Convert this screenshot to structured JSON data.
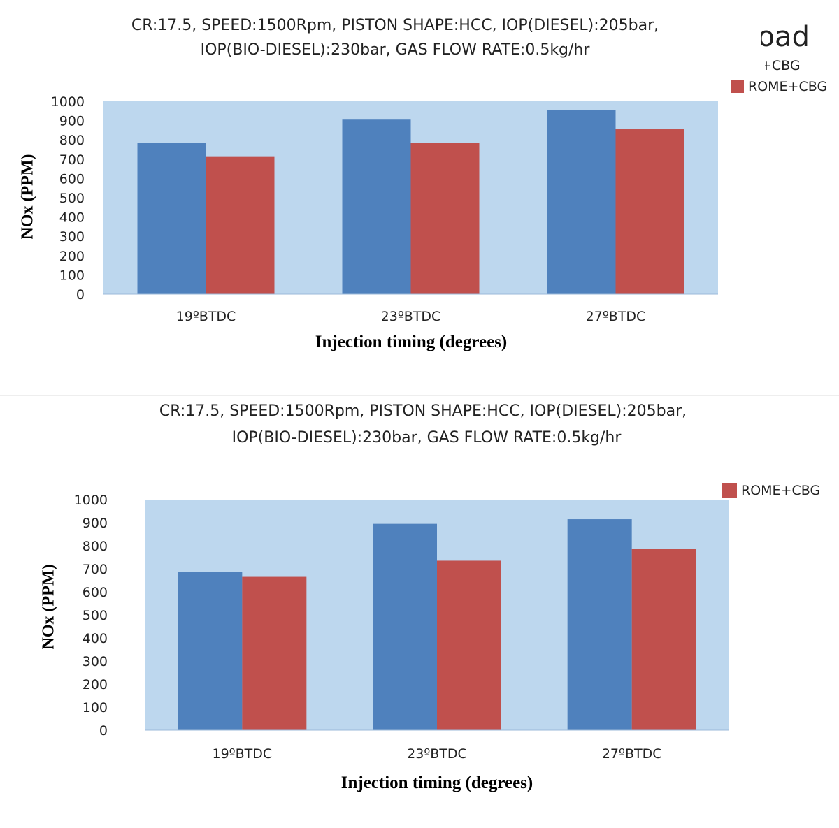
{
  "colors": {
    "plot_bg": "#bdd7ee",
    "series1": "#4f81bd",
    "series2": "#c0504d"
  },
  "charts": [
    {
      "title_line1": "CR:17.5, SPEED:1500Rpm, PISTON SHAPE:HCC,  IOP(DIESEL):205bar,",
      "title_line2": "IOP(BIO-DIESEL):230bar, GAS FLOW RATE:0.5kg/hr",
      "legend_partial_title": "Load",
      "legend_partial_entry": "+CBG",
      "legend_entry": "ROME+CBG"
    },
    {
      "title_line1": "CR:17.5, SPEED:1500Rpm, PISTON SHAPE:HCC,  IOP(DIESEL):205bar,",
      "title_line2": "IOP(BIO-DIESEL):230bar, GAS FLOW RATE:0.5kg/hr",
      "legend_entry": "ROME+CBG"
    }
  ],
  "chart_data": [
    {
      "type": "bar",
      "title": "CR:17.5, SPEED:1500Rpm, PISTON SHAPE:HCC,  IOP(DIESEL):205bar, IOP(BIO-DIESEL):230bar, GAS FLOW RATE:0.5kg/hr",
      "categories": [
        "19ºBTDC",
        "23ºBTDC",
        "27ºBTDC"
      ],
      "series": [
        {
          "values": [
            785,
            905,
            955
          ]
        },
        {
          "name": "ROME+CBG",
          "values": [
            715,
            785,
            855
          ]
        }
      ],
      "xlabel": "Injection timing (degrees)",
      "ylabel": "NOx (PPM)",
      "ylim": [
        0,
        1000
      ],
      "yticks": [
        0,
        100,
        200,
        300,
        400,
        500,
        600,
        700,
        800,
        900,
        1000
      ],
      "grid": false,
      "legend": "top-right"
    },
    {
      "type": "bar",
      "title": "CR:17.5, SPEED:1500Rpm, PISTON SHAPE:HCC,  IOP(DIESEL):205bar, IOP(BIO-DIESEL):230bar, GAS FLOW RATE:0.5kg/hr",
      "categories": [
        "19ºBTDC",
        "23ºBTDC",
        "27ºBTDC"
      ],
      "series": [
        {
          "values": [
            685,
            895,
            915
          ]
        },
        {
          "name": "ROME+CBG",
          "values": [
            665,
            735,
            785
          ]
        }
      ],
      "xlabel": "Injection timing (degrees)",
      "ylabel": "NOx (PPM)",
      "ylim": [
        0,
        1000
      ],
      "yticks": [
        0,
        100,
        200,
        300,
        400,
        500,
        600,
        700,
        800,
        900,
        1000
      ],
      "grid": false,
      "legend": "top-right"
    }
  ]
}
